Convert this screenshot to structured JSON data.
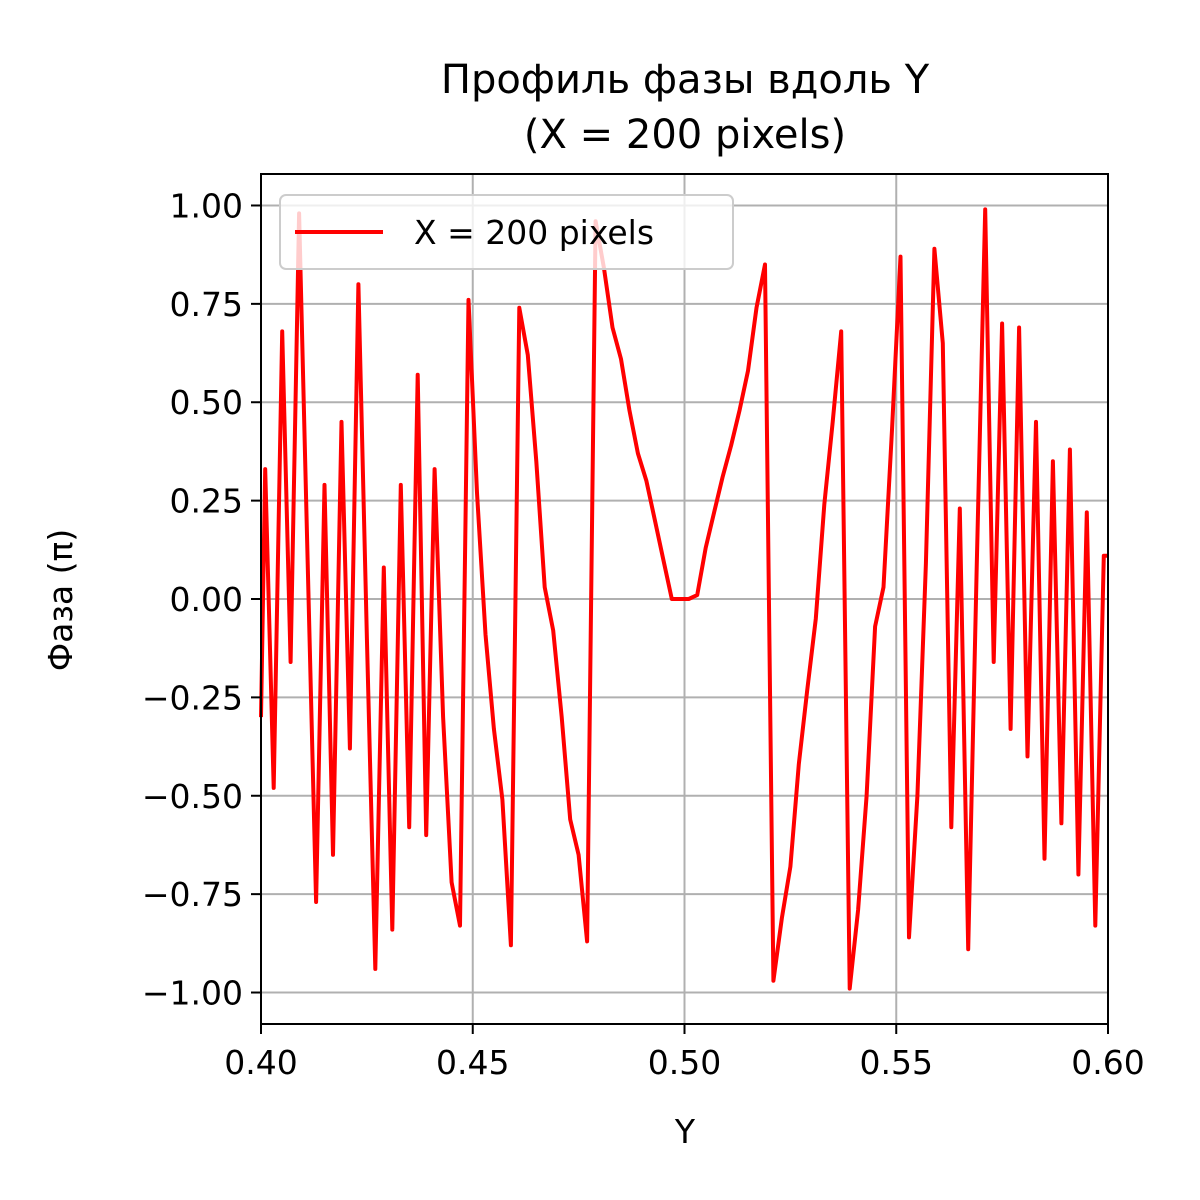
{
  "chart_data": {
    "type": "line",
    "title": [
      "Профиль фазы вдоль Y",
      "(X = 200 pixels)"
    ],
    "xlabel": "Y",
    "ylabel": "Фаза (π)",
    "xlim": [
      0.4,
      0.6
    ],
    "ylim": [
      -1.08,
      1.08
    ],
    "grid": true,
    "legend_placement": "upper-left",
    "x_ticks": [
      {
        "value": 0.4,
        "label": "0.40"
      },
      {
        "value": 0.45,
        "label": "0.45"
      },
      {
        "value": 0.5,
        "label": "0.50"
      },
      {
        "value": 0.55,
        "label": "0.55"
      },
      {
        "value": 0.6,
        "label": "0.60"
      }
    ],
    "y_ticks": [
      {
        "value": 1.0,
        "label": "1.00"
      },
      {
        "value": 0.75,
        "label": "0.75"
      },
      {
        "value": 0.5,
        "label": "0.50"
      },
      {
        "value": 0.25,
        "label": "0.25"
      },
      {
        "value": 0.0,
        "label": "0.00"
      },
      {
        "value": -0.25,
        "label": "−0.25"
      },
      {
        "value": -0.5,
        "label": "−0.50"
      },
      {
        "value": -0.75,
        "label": "−0.75"
      },
      {
        "value": -1.0,
        "label": "−1.00"
      }
    ],
    "series": [
      {
        "name": "X = 200 pixels",
        "color": "#ff0000",
        "x": [
          0.4,
          0.401,
          0.403,
          0.405,
          0.407,
          0.409,
          0.411,
          0.413,
          0.415,
          0.417,
          0.419,
          0.421,
          0.423,
          0.425,
          0.427,
          0.429,
          0.431,
          0.433,
          0.435,
          0.437,
          0.439,
          0.441,
          0.443,
          0.445,
          0.447,
          0.449,
          0.451,
          0.453,
          0.455,
          0.457,
          0.459,
          0.461,
          0.463,
          0.465,
          0.467,
          0.469,
          0.471,
          0.473,
          0.475,
          0.477,
          0.479,
          0.481,
          0.483,
          0.485,
          0.487,
          0.489,
          0.491,
          0.493,
          0.495,
          0.497,
          0.499,
          0.501,
          0.503,
          0.505,
          0.507,
          0.509,
          0.511,
          0.513,
          0.515,
          0.517,
          0.519,
          0.521,
          0.523,
          0.525,
          0.527,
          0.529,
          0.531,
          0.533,
          0.535,
          0.537,
          0.539,
          0.541,
          0.543,
          0.545,
          0.547,
          0.549,
          0.551,
          0.553,
          0.555,
          0.557,
          0.559,
          0.561,
          0.563,
          0.565,
          0.567,
          0.569,
          0.571,
          0.573,
          0.575,
          0.577,
          0.579,
          0.581,
          0.583,
          0.585,
          0.587,
          0.589,
          0.591,
          0.593,
          0.595,
          0.597,
          0.599,
          0.6
        ],
        "y": [
          -0.3,
          0.33,
          -0.48,
          0.68,
          -0.16,
          0.98,
          0.1,
          -0.77,
          0.29,
          -0.65,
          0.45,
          -0.38,
          0.8,
          -0.1,
          -0.94,
          0.08,
          -0.84,
          0.29,
          -0.58,
          0.57,
          -0.6,
          0.33,
          -0.3,
          -0.72,
          -0.83,
          0.76,
          0.27,
          -0.09,
          -0.33,
          -0.51,
          -0.88,
          0.74,
          0.62,
          0.35,
          0.03,
          -0.08,
          -0.3,
          -0.56,
          -0.65,
          -0.87,
          0.96,
          0.84,
          0.69,
          0.61,
          0.48,
          0.37,
          0.3,
          0.2,
          0.1,
          0.0,
          0.0,
          0.0,
          0.01,
          0.13,
          0.22,
          0.31,
          0.39,
          0.48,
          0.58,
          0.74,
          0.85,
          -0.97,
          -0.81,
          -0.68,
          -0.42,
          -0.23,
          -0.05,
          0.24,
          0.45,
          0.68,
          -0.99,
          -0.79,
          -0.5,
          -0.07,
          0.03,
          0.43,
          0.87,
          -0.86,
          -0.5,
          0.09,
          0.89,
          0.65,
          -0.58,
          0.23,
          -0.89,
          0.08,
          0.99,
          -0.16,
          0.7,
          -0.33,
          0.69,
          -0.4,
          0.45,
          -0.66,
          0.35,
          -0.57,
          0.38,
          -0.7,
          0.22,
          -0.83,
          0.11,
          0.11
        ]
      }
    ]
  }
}
